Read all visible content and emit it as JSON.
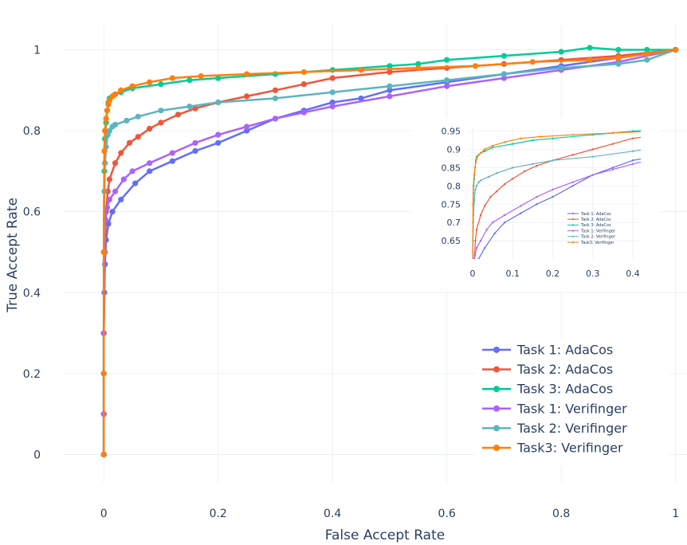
{
  "chart_data": {
    "type": "line",
    "xlabel": "False Accept Rate",
    "ylabel": "True Accept Rate",
    "xlim": [
      -0.07,
      1.02
    ],
    "ylim": [
      -0.07,
      1.06
    ],
    "x_ticks": [
      0,
      0.2,
      0.4,
      0.6,
      0.8,
      1
    ],
    "x_tick_labels": [
      "0",
      "0.2",
      "0.4",
      "0.6",
      "0.8",
      "1"
    ],
    "y_ticks": [
      0,
      0.2,
      0.4,
      0.6,
      0.8,
      1
    ],
    "y_tick_labels": [
      "0",
      "0.2",
      "0.4",
      "0.6",
      "0.8",
      "1"
    ],
    "grid": true,
    "legend_position": "bottom-right",
    "series": [
      {
        "name": "Task 1: AdaCos",
        "color": "#636efa",
        "x": [
          0,
          0,
          0,
          0.001,
          0.002,
          0.004,
          0.008,
          0.015,
          0.03,
          0.055,
          0.08,
          0.12,
          0.16,
          0.2,
          0.25,
          0.3,
          0.35,
          0.4,
          0.45,
          0.5,
          0.6,
          0.7,
          0.8,
          0.9,
          1
        ],
        "y": [
          0,
          0.1,
          0.3,
          0.4,
          0.47,
          0.53,
          0.57,
          0.6,
          0.63,
          0.67,
          0.7,
          0.725,
          0.75,
          0.77,
          0.8,
          0.83,
          0.85,
          0.87,
          0.88,
          0.9,
          0.92,
          0.94,
          0.96,
          0.98,
          1
        ]
      },
      {
        "name": "Task 2: AdaCos",
        "color": "#ef553b",
        "x": [
          0,
          0,
          0,
          0.002,
          0.004,
          0.007,
          0.01,
          0.02,
          0.03,
          0.045,
          0.06,
          0.08,
          0.1,
          0.13,
          0.16,
          0.2,
          0.25,
          0.3,
          0.35,
          0.4,
          0.5,
          0.6,
          0.7,
          0.8,
          0.9,
          1
        ],
        "y": [
          0,
          0.1,
          0.3,
          0.5,
          0.6,
          0.65,
          0.68,
          0.72,
          0.745,
          0.77,
          0.785,
          0.805,
          0.82,
          0.84,
          0.855,
          0.87,
          0.885,
          0.9,
          0.915,
          0.93,
          0.945,
          0.955,
          0.965,
          0.975,
          0.985,
          1
        ]
      },
      {
        "name": "Task 3: AdaCos",
        "color": "#00cc96",
        "x": [
          0,
          0,
          0,
          0.001,
          0.002,
          0.004,
          0.006,
          0.008,
          0.01,
          0.015,
          0.02,
          0.03,
          0.05,
          0.1,
          0.15,
          0.2,
          0.3,
          0.4,
          0.5,
          0.55,
          0.6,
          0.7,
          0.8,
          0.85,
          0.9,
          0.95,
          1
        ],
        "y": [
          0,
          0.2,
          0.5,
          0.7,
          0.78,
          0.82,
          0.85,
          0.87,
          0.88,
          0.885,
          0.89,
          0.895,
          0.905,
          0.915,
          0.925,
          0.93,
          0.94,
          0.95,
          0.96,
          0.965,
          0.975,
          0.985,
          0.995,
          1.005,
          1.0,
          1.0,
          1
        ]
      },
      {
        "name": "Task 1: Verifinger",
        "color": "#ab63fa",
        "x": [
          0,
          0,
          0,
          0.001,
          0.003,
          0.006,
          0.01,
          0.02,
          0.035,
          0.05,
          0.08,
          0.12,
          0.16,
          0.2,
          0.25,
          0.3,
          0.35,
          0.4,
          0.5,
          0.6,
          0.7,
          0.8,
          0.9,
          1
        ],
        "y": [
          0,
          0.1,
          0.3,
          0.5,
          0.58,
          0.61,
          0.63,
          0.65,
          0.68,
          0.7,
          0.72,
          0.745,
          0.77,
          0.79,
          0.81,
          0.83,
          0.845,
          0.86,
          0.885,
          0.91,
          0.93,
          0.95,
          0.97,
          1
        ]
      },
      {
        "name": "Task 2: Verifinger",
        "color": "#5cb4be",
        "x": [
          0,
          0,
          0,
          0.001,
          0.002,
          0.004,
          0.007,
          0.01,
          0.015,
          0.02,
          0.04,
          0.06,
          0.1,
          0.15,
          0.2,
          0.3,
          0.4,
          0.5,
          0.6,
          0.7,
          0.8,
          0.9,
          0.95,
          1
        ],
        "y": [
          0,
          0.2,
          0.5,
          0.65,
          0.72,
          0.76,
          0.79,
          0.8,
          0.81,
          0.815,
          0.825,
          0.835,
          0.85,
          0.86,
          0.87,
          0.88,
          0.895,
          0.91,
          0.925,
          0.94,
          0.955,
          0.965,
          0.975,
          1
        ]
      },
      {
        "name": "Task3: Verifinger",
        "color": "#ff7f0e",
        "x": [
          0,
          0,
          0,
          0.001,
          0.002,
          0.004,
          0.006,
          0.008,
          0.01,
          0.015,
          0.02,
          0.03,
          0.05,
          0.08,
          0.12,
          0.17,
          0.25,
          0.35,
          0.45,
          0.55,
          0.65,
          0.75,
          0.85,
          0.9,
          0.95,
          1
        ],
        "y": [
          0,
          0.2,
          0.5,
          0.75,
          0.8,
          0.83,
          0.85,
          0.865,
          0.875,
          0.885,
          0.89,
          0.9,
          0.91,
          0.92,
          0.93,
          0.935,
          0.94,
          0.945,
          0.95,
          0.955,
          0.96,
          0.97,
          0.975,
          0.98,
          0.99,
          1
        ]
      }
    ],
    "inset": {
      "xlim": [
        -0.01,
        0.42
      ],
      "ylim": [
        0.6,
        0.96
      ],
      "x_ticks": [
        0,
        0.1,
        0.2,
        0.3,
        0.4
      ],
      "x_tick_labels": [
        "0",
        "0.1",
        "0.2",
        "0.3",
        "0.4"
      ],
      "y_ticks": [
        0.65,
        0.7,
        0.75,
        0.8,
        0.85,
        0.9,
        0.95
      ],
      "y_tick_labels": [
        "0.65",
        "0.7",
        "0.75",
        "0.8",
        "0.85",
        "0.9",
        "0.95"
      ],
      "legend_position": "inside right",
      "legend_names": [
        "Task 1: AdaCos",
        "Task 2: AdaCos",
        "Task 3: AdaCos",
        "Task 1: Verifinger",
        "Task 2: Verifinger",
        "Task3: Verifinger"
      ]
    }
  }
}
